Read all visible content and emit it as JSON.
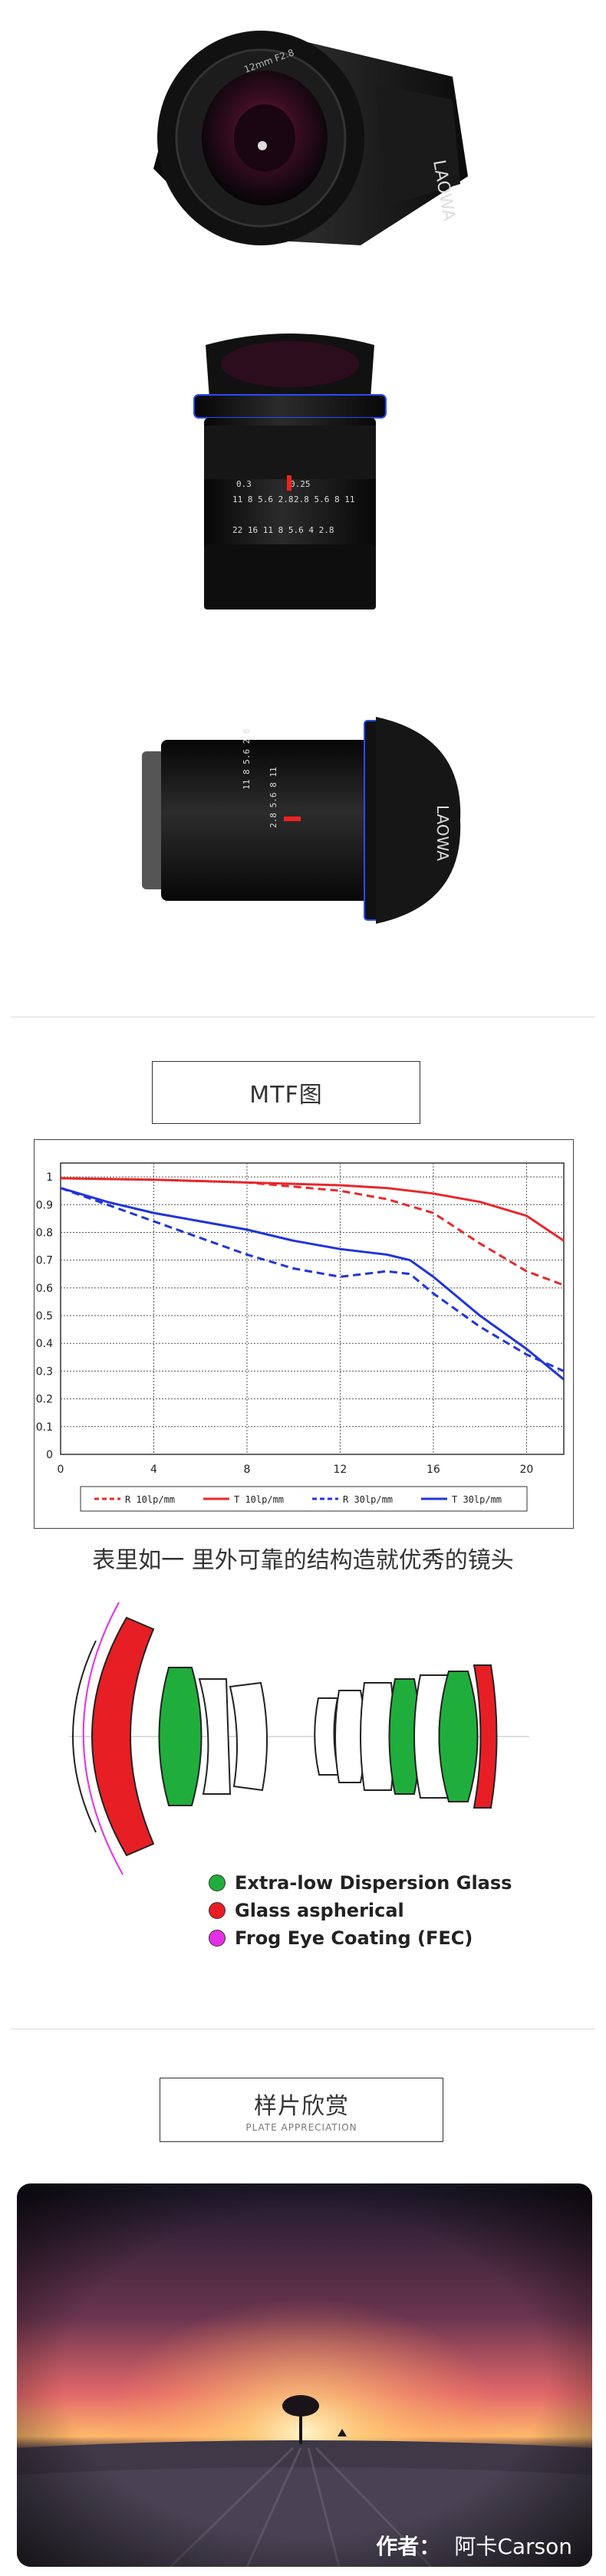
{
  "product": {
    "lens_barrel_text": "LAOWA",
    "focal_label": "12mm F2.8"
  },
  "mtf_section": {
    "title": "MTF图"
  },
  "chart_data": {
    "type": "line",
    "x_ticks": [
      0,
      4,
      8,
      12,
      16,
      20
    ],
    "y_ticks": [
      0,
      0.1,
      0.2,
      0.3,
      0.4,
      0.5,
      0.6,
      0.7,
      0.8,
      0.9,
      1
    ],
    "y_tick_labels": [
      "0",
      "0.1",
      "0.2",
      "0.3",
      "0.4",
      "0.5",
      "0.6",
      "0.7",
      "0.8",
      "0.9",
      "1"
    ],
    "xlim": [
      0,
      21.6
    ],
    "ylim": [
      0,
      1.05
    ],
    "grid": true,
    "legend_position": "bottom",
    "series": [
      {
        "name": "R 10lp/mm",
        "color": "#e8282b",
        "dash": true,
        "x": [
          0,
          4,
          8,
          12,
          14,
          16,
          18,
          20,
          21.6
        ],
        "y": [
          0.995,
          0.99,
          0.98,
          0.95,
          0.92,
          0.87,
          0.76,
          0.66,
          0.61
        ]
      },
      {
        "name": "T 10lp/mm",
        "color": "#e8282b",
        "dash": false,
        "x": [
          0,
          4,
          8,
          12,
          14,
          16,
          18,
          20,
          21.6
        ],
        "y": [
          0.995,
          0.99,
          0.98,
          0.97,
          0.96,
          0.94,
          0.91,
          0.86,
          0.77
        ]
      },
      {
        "name": "R 30lp/mm",
        "color": "#2035d8",
        "dash": true,
        "x": [
          0,
          2,
          4,
          6,
          8,
          10,
          12,
          14,
          15,
          16,
          18,
          20,
          21.6
        ],
        "y": [
          0.96,
          0.9,
          0.84,
          0.78,
          0.72,
          0.67,
          0.64,
          0.66,
          0.65,
          0.58,
          0.46,
          0.36,
          0.3
        ]
      },
      {
        "name": "T 30lp/mm",
        "color": "#2035d8",
        "dash": false,
        "x": [
          0,
          2,
          4,
          6,
          8,
          10,
          12,
          14,
          15,
          16,
          18,
          20,
          21.6
        ],
        "y": [
          0.96,
          0.91,
          0.87,
          0.84,
          0.81,
          0.77,
          0.74,
          0.72,
          0.7,
          0.64,
          0.5,
          0.38,
          0.27
        ]
      }
    ]
  },
  "optics": {
    "headline": "表里如一 里外可靠的结构造就优秀的镜头",
    "legend": [
      {
        "label": "Extra-low Dispersion Glass",
        "color": "#1fae3c"
      },
      {
        "label": "Glass aspherical",
        "color": "#e81e25"
      },
      {
        "label": "Frog Eye Coating (FEC)",
        "color": "#e62ee6"
      }
    ]
  },
  "samples": {
    "title": "样片欣赏",
    "subtitle": "PLATE APPRECIATION",
    "credit_label": "作者：",
    "credit_name": "阿卡Carson"
  }
}
